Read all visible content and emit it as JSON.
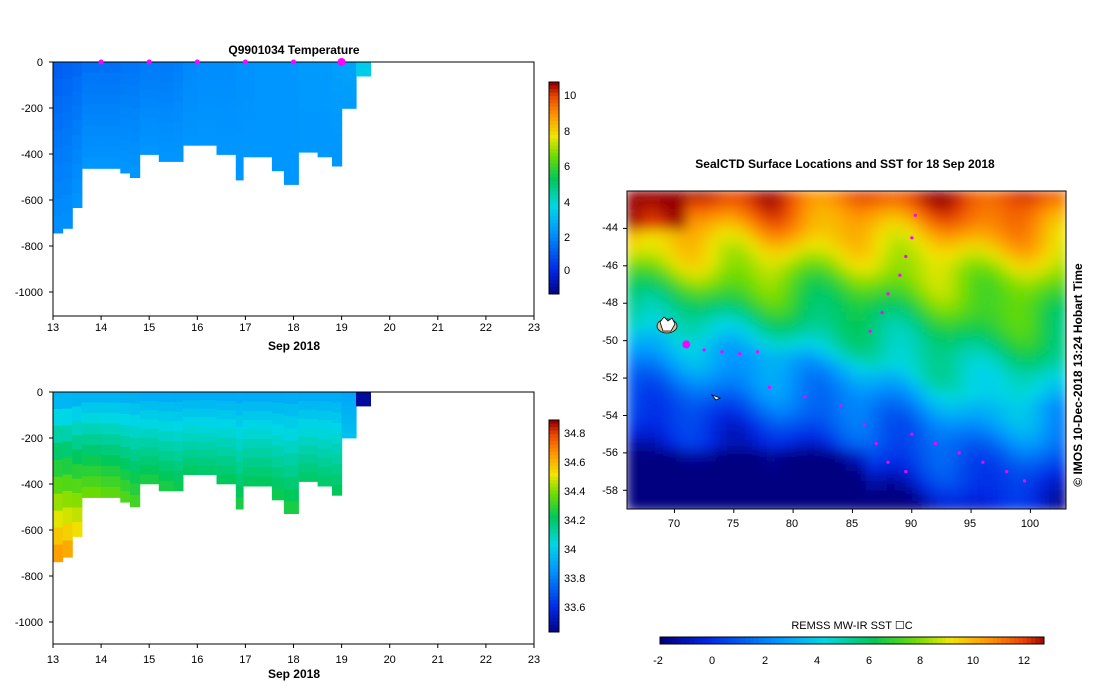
{
  "panels": {
    "temperature": {
      "title": "Q9901034  Temperature",
      "xlabel": "Sep 2018",
      "x_ticks": [
        "13",
        "14",
        "15",
        "16",
        "17",
        "18",
        "19",
        "20",
        "21",
        "22",
        "23"
      ],
      "y_ticks": [
        "0",
        "-200",
        "-400",
        "-600",
        "-800",
        "-1000"
      ],
      "colorbar_ticks": [
        "10",
        "8",
        "6",
        "4",
        "2",
        "0"
      ]
    },
    "salinity": {
      "xlabel": "Sep 2018",
      "x_ticks": [
        "13",
        "14",
        "15",
        "16",
        "17",
        "18",
        "19",
        "20",
        "21",
        "22",
        "23"
      ],
      "y_ticks": [
        "0",
        "-200",
        "-400",
        "-600",
        "-800",
        "-1000"
      ],
      "colorbar_ticks": [
        "34.8",
        "34.6",
        "34.4",
        "34.2",
        "34",
        "33.8",
        "33.6"
      ]
    },
    "map": {
      "title": "SealCTD Surface Locations and SST for 18 Sep 2018",
      "lat_ticks": [
        "-44",
        "-46",
        "-48",
        "-50",
        "-52",
        "-54",
        "-56",
        "-58"
      ],
      "lon_ticks": [
        "70",
        "75",
        "80",
        "85",
        "90",
        "95",
        "100"
      ],
      "side_label": "© IMOS 10-Dec-2018 13:24 Hobart Time",
      "colorbar_title": "REMSS MW-IR SST ☐C",
      "colorbar_ticks": [
        "-2",
        "0",
        "2",
        "4",
        "6",
        "8",
        "10",
        "12"
      ]
    }
  },
  "chart_data": [
    {
      "type": "heatmap",
      "title": "Q9901034  Temperature",
      "xlabel": "Sep 2018",
      "ylabel": "",
      "xlim": [
        13,
        23
      ],
      "ylim": [
        -1100,
        0
      ],
      "clim": [
        -1.3,
        11
      ],
      "profile_days": [
        13.0,
        13.2,
        13.4,
        13.6,
        14.0,
        14.4,
        14.6,
        14.8,
        15.2,
        15.5,
        15.7,
        16.0,
        16.4,
        16.8,
        16.95,
        17.2,
        17.55,
        17.8,
        18.1,
        18.5,
        18.8,
        19.0,
        19.3
      ],
      "profile_max_depth_m": [
        740,
        720,
        630,
        460,
        460,
        480,
        500,
        400,
        430,
        430,
        360,
        360,
        400,
        510,
        410,
        410,
        470,
        530,
        390,
        410,
        450,
        200,
        60
      ],
      "surface_temp_C": [
        1.2,
        1.3,
        1.4,
        1.6,
        1.6,
        1.7,
        1.7,
        1.8,
        1.8,
        1.9,
        2.1,
        2.2,
        2.2,
        2.3,
        2.3,
        2.4,
        2.4,
        2.4,
        2.5,
        2.5,
        2.6,
        2.7,
        3.6
      ],
      "deep_temp_C": [
        2.3,
        2.3,
        2.4,
        2.4,
        2.4,
        2.4,
        2.4,
        2.4,
        2.4,
        2.4,
        2.4,
        2.4,
        2.4,
        2.4,
        2.4,
        2.4,
        2.4,
        2.4,
        2.4,
        2.4,
        2.4,
        2.5,
        3.6
      ],
      "surfacing_markers": [
        14,
        15,
        16,
        17,
        18,
        19
      ]
    },
    {
      "type": "heatmap",
      "title": "",
      "xlabel": "Sep 2018",
      "ylabel": "",
      "xlim": [
        13,
        23
      ],
      "ylim": [
        -1100,
        0
      ],
      "clim": [
        33.45,
        34.9
      ],
      "profile_days": [
        13.0,
        13.2,
        13.4,
        13.6,
        14.0,
        14.4,
        14.6,
        14.8,
        15.2,
        15.5,
        15.7,
        16.0,
        16.4,
        16.8,
        16.95,
        17.2,
        17.55,
        17.8,
        18.1,
        18.5,
        18.8,
        19.0,
        19.3
      ],
      "profile_max_depth_m": [
        740,
        720,
        630,
        460,
        460,
        480,
        500,
        400,
        430,
        430,
        360,
        360,
        400,
        510,
        410,
        410,
        470,
        530,
        390,
        410,
        450,
        200,
        60
      ],
      "surface_sal": [
        33.92,
        33.92,
        33.92,
        33.93,
        33.93,
        33.93,
        33.93,
        33.92,
        33.92,
        33.92,
        33.92,
        33.92,
        33.92,
        33.92,
        33.92,
        33.92,
        33.92,
        33.92,
        33.92,
        33.92,
        33.92,
        33.92,
        33.5
      ],
      "deep_sal": [
        34.7,
        34.68,
        34.58,
        34.42,
        34.4,
        34.38,
        34.36,
        34.3,
        34.3,
        34.28,
        34.25,
        34.24,
        34.26,
        34.3,
        34.26,
        34.26,
        34.28,
        34.3,
        34.24,
        34.24,
        34.26,
        34.0,
        33.5
      ]
    },
    {
      "type": "heatmap",
      "title": "SealCTD Surface Locations and SST for 18 Sep 2018",
      "xlim": [
        66,
        103
      ],
      "ylim": [
        -59,
        -42
      ],
      "clim": [
        -2,
        12.8
      ],
      "colorbar_label": "REMSS MW-IR SST ☐C",
      "sst_front_lat_by_lon": [
        {
          "lon": 66,
          "warm_edge": -45.5,
          "front": -49.5
        },
        {
          "lon": 72,
          "warm_edge": -46.0,
          "front": -50.0
        },
        {
          "lon": 78,
          "warm_edge": -46.3,
          "front": -50.5
        },
        {
          "lon": 84,
          "warm_edge": -45.5,
          "front": -51.0
        },
        {
          "lon": 90,
          "warm_edge": -46.0,
          "front": -52.0
        },
        {
          "lon": 96,
          "warm_edge": -46.5,
          "front": -53.5
        },
        {
          "lon": 103,
          "warm_edge": -46.0,
          "front": -53.0
        }
      ],
      "tracks": [
        {
          "points": [
            [
              71.0,
              -50.2
            ],
            [
              72.5,
              -50.5
            ],
            [
              74.0,
              -50.6
            ],
            [
              75.5,
              -50.7
            ],
            [
              77.0,
              -50.6
            ]
          ],
          "highlight": [
            71.0,
            -50.2
          ]
        },
        {
          "points": [
            [
              90.3,
              -43.3
            ],
            [
              90.0,
              -44.5
            ],
            [
              89.5,
              -45.5
            ],
            [
              89.0,
              -46.5
            ],
            [
              88.0,
              -47.5
            ],
            [
              87.5,
              -48.5
            ],
            [
              86.5,
              -49.5
            ]
          ]
        },
        {
          "points": [
            [
              78.0,
              -52.5
            ],
            [
              81.0,
              -53.0
            ],
            [
              84.0,
              -53.5
            ],
            [
              86.0,
              -54.5
            ],
            [
              87.0,
              -55.5
            ],
            [
              88.0,
              -56.5
            ],
            [
              89.5,
              -57.0
            ]
          ]
        },
        {
          "points": [
            [
              90.0,
              -55.0
            ],
            [
              92.0,
              -55.5
            ],
            [
              94.0,
              -56.0
            ],
            [
              96.0,
              -56.5
            ],
            [
              98.0,
              -57.0
            ],
            [
              99.5,
              -57.5
            ]
          ]
        }
      ]
    }
  ]
}
